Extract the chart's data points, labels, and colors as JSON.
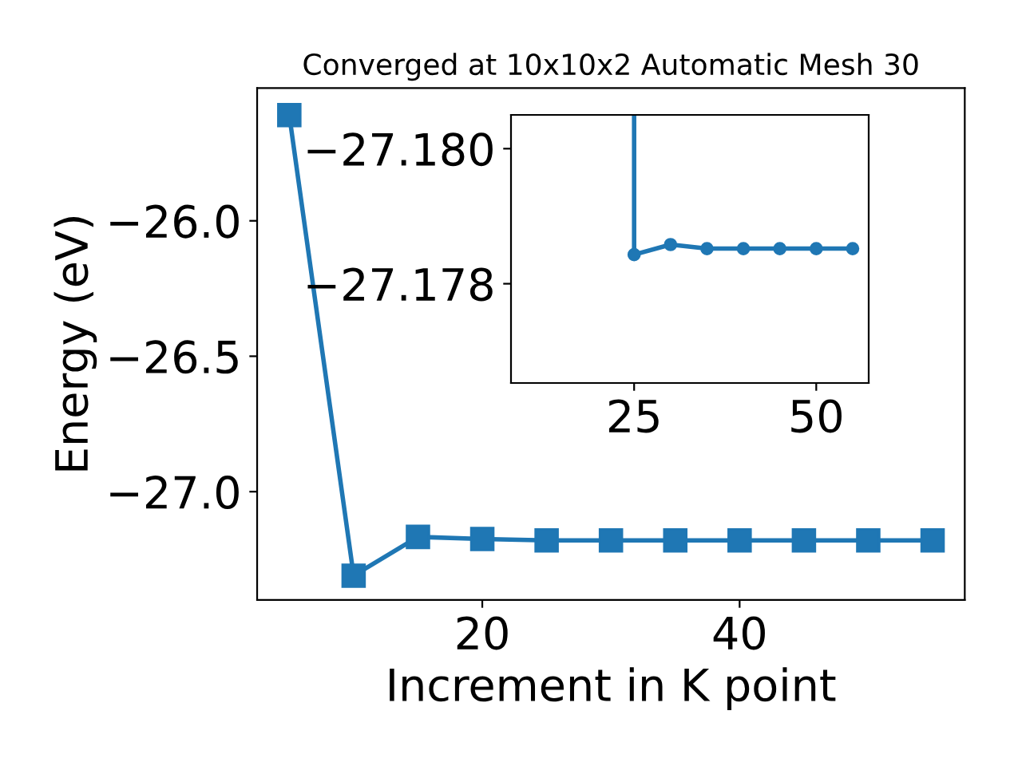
{
  "chart_data": [
    {
      "type": "line",
      "title": "Converged at 10x10x2 Automatic Mesh 30",
      "xlabel": "Increment in K point",
      "ylabel": "Energy (eV)",
      "x": [
        5,
        10,
        15,
        20,
        25,
        30,
        35,
        40,
        45,
        50,
        55
      ],
      "series": [
        {
          "color": "#1f77b4",
          "values": [
            -25.61,
            -27.31,
            -27.167,
            -27.175,
            -27.18,
            -27.18,
            -27.18,
            -27.18,
            -27.18,
            -27.18,
            -27.18
          ]
        }
      ],
      "marker": "square",
      "line_style": "solid",
      "grid": false,
      "legend": false,
      "xlim": [
        2.5,
        57.5
      ],
      "xticks": [
        20,
        40
      ],
      "ylim": [
        -27.4,
        -25.51
      ],
      "yticks": [
        {
          "value": -26.0,
          "label": "−26.0"
        },
        {
          "value": -26.5,
          "label": "−26.5"
        },
        {
          "value": -27.0,
          "label": "−27.0"
        }
      ]
    },
    {
      "type": "line",
      "x": [
        25,
        25,
        30,
        35,
        40,
        45,
        50,
        55
      ],
      "series": [
        {
          "color": "#1f77b4",
          "values": [
            -27.1805,
            -27.17843,
            -27.17858,
            -27.17852,
            -27.17852,
            -27.17852,
            -27.17852,
            -27.17852
          ]
        }
      ],
      "marker": "circle",
      "line_style": "solid",
      "grid": false,
      "legend": false,
      "xlim": [
        8.1,
        57.2
      ],
      "xticks": [
        25,
        50
      ],
      "ylim": [
        -27.17653,
        -27.1805
      ],
      "yticks": [
        {
          "value": -27.18,
          "label": "−27.180"
        },
        {
          "value": -27.178,
          "label": "−27.178"
        }
      ]
    }
  ]
}
